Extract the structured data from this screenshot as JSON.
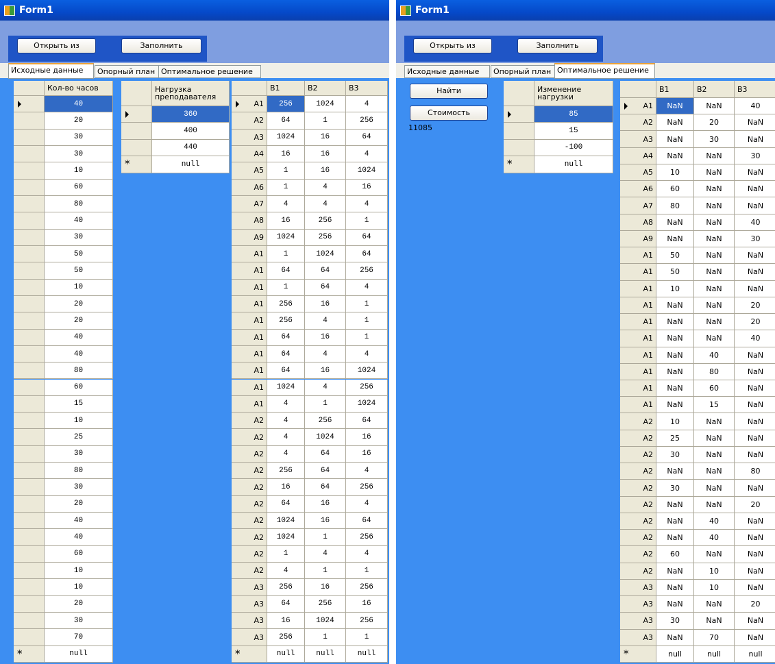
{
  "windows": [
    {
      "title": "Form1",
      "buttons": [
        "Открыть из",
        "Заполнить"
      ],
      "tabs": [
        "Исходные данные",
        "Опорный план",
        "Оптимальное решение"
      ],
      "active_tab": 0,
      "grids": [
        {
          "headers": [
            "Кол-во часов"
          ],
          "rows": [
            [
              "40"
            ],
            [
              "20"
            ],
            [
              "30"
            ],
            [
              "30"
            ],
            [
              "10"
            ],
            [
              "60"
            ],
            [
              "80"
            ],
            [
              "40"
            ],
            [
              "30"
            ],
            [
              "50"
            ],
            [
              "50"
            ],
            [
              "10"
            ],
            [
              "20"
            ],
            [
              "20"
            ],
            [
              "40"
            ],
            [
              "40"
            ],
            [
              "80"
            ],
            [
              "60"
            ],
            [
              "15"
            ],
            [
              "10"
            ],
            [
              "25"
            ],
            [
              "30"
            ],
            [
              "80"
            ],
            [
              "30"
            ],
            [
              "20"
            ],
            [
              "40"
            ],
            [
              "40"
            ],
            [
              "60"
            ],
            [
              "10"
            ],
            [
              "10"
            ],
            [
              "20"
            ],
            [
              "30"
            ],
            [
              "70"
            ]
          ],
          "new_row": [
            "null"
          ],
          "new_row_marker": "*"
        },
        {
          "headers": [
            "Нагрузка преподавателя"
          ],
          "rows": [
            [
              "360"
            ],
            [
              "400"
            ],
            [
              "440"
            ]
          ],
          "new_row": [
            "null"
          ],
          "new_row_marker": "*"
        },
        {
          "headers": [
            "B1",
            "B2",
            "B3"
          ],
          "row_labels": [
            "A1",
            "A2",
            "A3",
            "A4",
            "A5",
            "A6",
            "A7",
            "A8",
            "A9",
            "A1",
            "A1",
            "A1",
            "A1",
            "A1",
            "A1",
            "A1",
            "A1",
            "A1",
            "A1",
            "A2",
            "A2",
            "A2",
            "A2",
            "A2",
            "A2",
            "A2",
            "A2",
            "A2",
            "A2",
            "A3",
            "A3",
            "A3",
            "A3"
          ],
          "rows": [
            [
              "256",
              "1024",
              "4"
            ],
            [
              "64",
              "1",
              "256"
            ],
            [
              "1024",
              "16",
              "64"
            ],
            [
              "16",
              "16",
              "4"
            ],
            [
              "1",
              "16",
              "1024"
            ],
            [
              "1",
              "4",
              "16"
            ],
            [
              "4",
              "4",
              "4"
            ],
            [
              "16",
              "256",
              "1"
            ],
            [
              "1024",
              "256",
              "64"
            ],
            [
              "1",
              "1024",
              "64"
            ],
            [
              "64",
              "64",
              "256"
            ],
            [
              "1",
              "64",
              "4"
            ],
            [
              "256",
              "16",
              "1"
            ],
            [
              "256",
              "4",
              "1"
            ],
            [
              "64",
              "16",
              "1"
            ],
            [
              "64",
              "4",
              "4"
            ],
            [
              "64",
              "16",
              "1024"
            ],
            [
              "1024",
              "4",
              "256"
            ],
            [
              "4",
              "1",
              "1024"
            ],
            [
              "4",
              "256",
              "64"
            ],
            [
              "4",
              "1024",
              "16"
            ],
            [
              "4",
              "64",
              "16"
            ],
            [
              "256",
              "64",
              "4"
            ],
            [
              "16",
              "64",
              "256"
            ],
            [
              "64",
              "16",
              "4"
            ],
            [
              "1024",
              "16",
              "64"
            ],
            [
              "1024",
              "1",
              "256"
            ],
            [
              "1",
              "4",
              "4"
            ],
            [
              "4",
              "1",
              "1"
            ],
            [
              "256",
              "16",
              "256"
            ],
            [
              "64",
              "256",
              "16"
            ],
            [
              "16",
              "1024",
              "256"
            ],
            [
              "256",
              "1",
              "1"
            ]
          ],
          "new_row": [
            "null",
            "null",
            "null"
          ],
          "new_row_marker": "*"
        }
      ]
    },
    {
      "title": "Form1",
      "buttons": [
        "Открыть из",
        "Заполнить"
      ],
      "tabs": [
        "Исходные данные",
        "Опорный план",
        "Оптимальное решение"
      ],
      "active_tab": 2,
      "actions": [
        "Найти",
        "Стоимость"
      ],
      "cost": "11085",
      "grids": [
        {
          "headers": [
            "Изменение нагрузки"
          ],
          "rows": [
            [
              "85"
            ],
            [
              "15"
            ],
            [
              "-100"
            ]
          ],
          "new_row": [
            "null"
          ],
          "new_row_marker": "*"
        },
        {
          "headers": [
            "B1",
            "B2",
            "B3"
          ],
          "row_labels": [
            "A1",
            "A2",
            "A3",
            "A4",
            "A5",
            "A6",
            "A7",
            "A8",
            "A9",
            "A1",
            "A1",
            "A1",
            "A1",
            "A1",
            "A1",
            "A1",
            "A1",
            "A1",
            "A1",
            "A2",
            "A2",
            "A2",
            "A2",
            "A2",
            "A2",
            "A2",
            "A2",
            "A2",
            "A2",
            "A3",
            "A3",
            "A3",
            "A3"
          ],
          "rows": [
            [
              "NaN",
              "NaN",
              "40"
            ],
            [
              "NaN",
              "20",
              "NaN"
            ],
            [
              "NaN",
              "30",
              "NaN"
            ],
            [
              "NaN",
              "NaN",
              "30"
            ],
            [
              "10",
              "NaN",
              "NaN"
            ],
            [
              "60",
              "NaN",
              "NaN"
            ],
            [
              "80",
              "NaN",
              "NaN"
            ],
            [
              "NaN",
              "NaN",
              "40"
            ],
            [
              "NaN",
              "NaN",
              "30"
            ],
            [
              "50",
              "NaN",
              "NaN"
            ],
            [
              "50",
              "NaN",
              "NaN"
            ],
            [
              "10",
              "NaN",
              "NaN"
            ],
            [
              "NaN",
              "NaN",
              "20"
            ],
            [
              "NaN",
              "NaN",
              "20"
            ],
            [
              "NaN",
              "NaN",
              "40"
            ],
            [
              "NaN",
              "40",
              "NaN"
            ],
            [
              "NaN",
              "80",
              "NaN"
            ],
            [
              "NaN",
              "60",
              "NaN"
            ],
            [
              "NaN",
              "15",
              "NaN"
            ],
            [
              "10",
              "NaN",
              "NaN"
            ],
            [
              "25",
              "NaN",
              "NaN"
            ],
            [
              "30",
              "NaN",
              "NaN"
            ],
            [
              "NaN",
              "NaN",
              "80"
            ],
            [
              "30",
              "NaN",
              "NaN"
            ],
            [
              "NaN",
              "NaN",
              "20"
            ],
            [
              "NaN",
              "40",
              "NaN"
            ],
            [
              "NaN",
              "40",
              "NaN"
            ],
            [
              "60",
              "NaN",
              "NaN"
            ],
            [
              "NaN",
              "10",
              "NaN"
            ],
            [
              "NaN",
              "10",
              "NaN"
            ],
            [
              "NaN",
              "NaN",
              "20"
            ],
            [
              "30",
              "NaN",
              "NaN"
            ],
            [
              "NaN",
              "70",
              "NaN"
            ]
          ],
          "new_row": [
            "null",
            "null",
            "null"
          ],
          "new_row_marker": "*"
        }
      ]
    }
  ]
}
